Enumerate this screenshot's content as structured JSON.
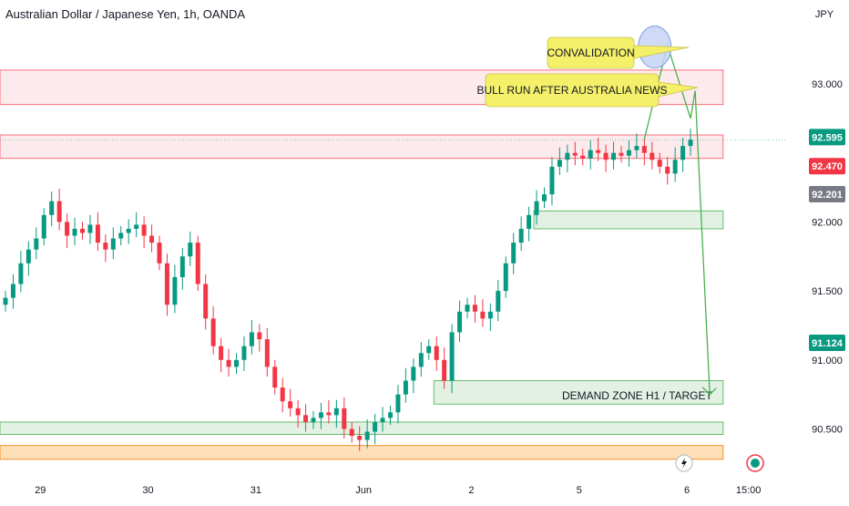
{
  "header": {
    "title": "Australian Dollar / Japanese Yen, 1h, OANDA",
    "currency": "JPY"
  },
  "colors": {
    "up": "#089981",
    "down": "#f23645",
    "supply_fill": "#fde8ea",
    "supply_line": "#f7525f",
    "demand_fill": "#dff0e1",
    "demand_line": "#4caf50",
    "orange_fill": "#fddcb0",
    "orange_line": "#f57c00",
    "arrow": "#4caf50",
    "callout": "#f5f06a",
    "circle": "#c5d4f5"
  },
  "chart_data": {
    "type": "candlestick",
    "title": "Australian Dollar / Japanese Yen, 1h, OANDA",
    "ylabel": "JPY",
    "ylim": [
      90.2,
      93.3
    ],
    "yticks": [
      {
        "value": 93.0,
        "label": "93.000"
      },
      {
        "value": 92.0,
        "label": "92.000"
      },
      {
        "value": 91.5,
        "label": "91.500"
      },
      {
        "value": 91.0,
        "label": "91.000"
      },
      {
        "value": 90.5,
        "label": "90.500"
      }
    ],
    "xticks": [
      {
        "label": "29",
        "index": 5
      },
      {
        "label": "30",
        "index": 19
      },
      {
        "label": "31",
        "index": 33
      },
      {
        "label": "Jun",
        "index": 47
      },
      {
        "label": "2",
        "index": 61
      },
      {
        "label": "5",
        "index": 75
      },
      {
        "label": "6",
        "index": 89
      },
      {
        "label": "15:00",
        "index": 97
      }
    ],
    "candle_count": 90,
    "price_labels": [
      {
        "value": 92.595,
        "label": "92.595",
        "color": "#089981"
      },
      {
        "value": 92.47,
        "label": "92.470",
        "color": "#f23645"
      },
      {
        "value": 92.201,
        "label": "92.201",
        "color": "#787b86"
      },
      {
        "value": 91.124,
        "label": "91.124",
        "color": "#089981"
      }
    ],
    "closes": [
      91.45,
      91.55,
      91.7,
      91.8,
      91.88,
      92.05,
      92.15,
      92.0,
      91.9,
      91.95,
      91.92,
      91.98,
      91.85,
      91.8,
      91.88,
      91.92,
      91.95,
      91.98,
      91.9,
      91.85,
      91.7,
      91.4,
      91.6,
      91.75,
      91.85,
      91.55,
      91.3,
      91.1,
      91.0,
      90.95,
      91.0,
      91.1,
      91.2,
      91.15,
      90.95,
      90.8,
      90.7,
      90.65,
      90.6,
      90.55,
      90.58,
      90.62,
      90.6,
      90.65,
      90.5,
      90.45,
      90.42,
      90.48,
      90.55,
      90.58,
      90.62,
      90.75,
      90.85,
      90.95,
      91.05,
      91.1,
      91.0,
      90.85,
      91.2,
      91.35,
      91.4,
      91.35,
      91.3,
      91.35,
      91.5,
      91.7,
      91.85,
      91.95,
      92.05,
      92.15,
      92.2,
      92.4,
      92.45,
      92.5,
      92.48,
      92.46,
      92.52,
      92.5,
      92.45,
      92.5,
      92.48,
      92.52,
      92.55,
      92.5,
      92.45,
      92.4,
      92.35,
      92.45,
      92.55,
      92.595
    ],
    "zones": [
      {
        "name": "supply-zone-upper",
        "kind": "supply",
        "y1": 93.1,
        "y2": 92.85,
        "x1": 0,
        "x2": 93
      },
      {
        "name": "supply-zone-lower",
        "kind": "supply",
        "y1": 92.63,
        "y2": 92.46,
        "x1": 0,
        "x2": 93
      },
      {
        "name": "demand-zone-92",
        "kind": "demand",
        "y1": 92.08,
        "y2": 91.95,
        "x1": 69,
        "x2": 93
      },
      {
        "name": "demand-zone-target",
        "kind": "demand",
        "y1": 90.85,
        "y2": 90.68,
        "x1": 56,
        "x2": 93,
        "label": "DEMAND ZONE H1  / TARGET"
      },
      {
        "name": "demand-zone-bottom",
        "kind": "demand",
        "y1": 90.55,
        "y2": 90.46,
        "x1": 0,
        "x2": 93
      },
      {
        "name": "orange-zone",
        "kind": "orange",
        "y1": 90.38,
        "y2": 90.28,
        "x1": 0,
        "x2": 93
      }
    ],
    "projection": [
      {
        "x": 83,
        "y": 92.6
      },
      {
        "x": 86,
        "y": 93.28
      },
      {
        "x": 89,
        "y": 92.75
      },
      {
        "x": 89.6,
        "y": 92.95
      },
      {
        "x": 91.5,
        "y": 90.75
      }
    ],
    "annotations": [
      {
        "name": "callout-convalidation",
        "text": "CONVALIDATION"
      },
      {
        "name": "callout-bull-run",
        "text": "BULL RUN AFTER AUSTRALIA NEWS"
      }
    ]
  }
}
